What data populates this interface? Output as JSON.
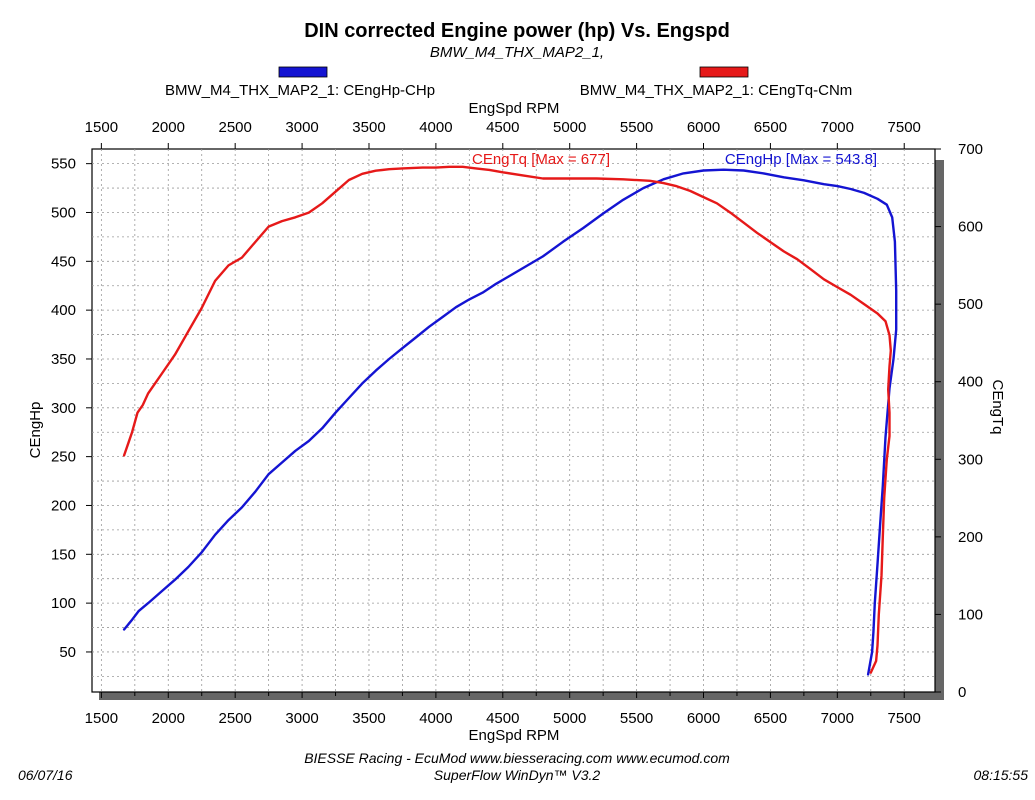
{
  "chart_data": {
    "type": "line",
    "title": "DIN corrected Engine power (hp) Vs. Engspd",
    "subtitle": "BMW_M4_THX_MAP2_1,",
    "xlabel": "EngSpd RPM",
    "ylabel": "CEngHp",
    "y2label": "CEngTq",
    "xlim": [
      1430,
      7730
    ],
    "ylim": [
      9,
      565
    ],
    "y2lim": [
      0,
      700
    ],
    "x_ticks": [
      1500,
      2000,
      2500,
      3000,
      3500,
      4000,
      4500,
      5000,
      5500,
      6000,
      6500,
      7000,
      7500
    ],
    "y_ticks": [
      50,
      100,
      150,
      200,
      250,
      300,
      350,
      400,
      450,
      500,
      550
    ],
    "y2_ticks": [
      0,
      100,
      200,
      300,
      400,
      500,
      600,
      700
    ],
    "grid": true,
    "legend_position": "top",
    "series": [
      {
        "name": "BMW_M4_THX_MAP2_1: CEngHp-CHp",
        "axis": "left",
        "color": "#1414d2",
        "annotation": "CEngHp [Max = 543.8]",
        "points": [
          [
            1670,
            73
          ],
          [
            1730,
            83
          ],
          [
            1780,
            92
          ],
          [
            1850,
            100
          ],
          [
            1950,
            112
          ],
          [
            2050,
            124
          ],
          [
            2150,
            137
          ],
          [
            2250,
            152
          ],
          [
            2350,
            170
          ],
          [
            2450,
            185
          ],
          [
            2550,
            198
          ],
          [
            2650,
            214
          ],
          [
            2750,
            232
          ],
          [
            2850,
            244
          ],
          [
            2950,
            256
          ],
          [
            3050,
            266
          ],
          [
            3150,
            279
          ],
          [
            3250,
            295
          ],
          [
            3350,
            310
          ],
          [
            3450,
            325
          ],
          [
            3550,
            338
          ],
          [
            3650,
            350
          ],
          [
            3750,
            361
          ],
          [
            3850,
            372
          ],
          [
            3950,
            383
          ],
          [
            4050,
            393
          ],
          [
            4150,
            403
          ],
          [
            4250,
            411
          ],
          [
            4350,
            418
          ],
          [
            4450,
            427
          ],
          [
            4550,
            435
          ],
          [
            4650,
            443
          ],
          [
            4800,
            455
          ],
          [
            4950,
            470
          ],
          [
            5100,
            484
          ],
          [
            5250,
            499
          ],
          [
            5400,
            513
          ],
          [
            5550,
            525
          ],
          [
            5700,
            534
          ],
          [
            5850,
            540
          ],
          [
            6000,
            543
          ],
          [
            6150,
            543.8
          ],
          [
            6300,
            543
          ],
          [
            6450,
            540
          ],
          [
            6600,
            536
          ],
          [
            6750,
            533
          ],
          [
            6900,
            529
          ],
          [
            7000,
            527
          ],
          [
            7100,
            524
          ],
          [
            7200,
            520
          ],
          [
            7300,
            514
          ],
          [
            7370,
            508
          ],
          [
            7410,
            495
          ],
          [
            7430,
            470
          ],
          [
            7440,
            420
          ],
          [
            7440,
            380
          ],
          [
            7420,
            350
          ],
          [
            7390,
            320
          ],
          [
            7360,
            270
          ],
          [
            7340,
            220
          ],
          [
            7320,
            180
          ],
          [
            7300,
            140
          ],
          [
            7280,
            100
          ],
          [
            7270,
            70
          ],
          [
            7260,
            50
          ],
          [
            7230,
            27
          ]
        ]
      },
      {
        "name": "BMW_M4_THX_MAP2_1: CEngTq-CNm",
        "axis": "right",
        "color": "#e61919",
        "annotation": "CEngTq [Max = 677]",
        "points": [
          [
            1670,
            305
          ],
          [
            1700,
            320
          ],
          [
            1730,
            335
          ],
          [
            1770,
            360
          ],
          [
            1810,
            370
          ],
          [
            1850,
            385
          ],
          [
            1950,
            410
          ],
          [
            2050,
            435
          ],
          [
            2150,
            465
          ],
          [
            2250,
            495
          ],
          [
            2350,
            530
          ],
          [
            2450,
            550
          ],
          [
            2550,
            560
          ],
          [
            2650,
            580
          ],
          [
            2750,
            600
          ],
          [
            2850,
            607
          ],
          [
            2950,
            612
          ],
          [
            3050,
            618
          ],
          [
            3150,
            630
          ],
          [
            3250,
            645
          ],
          [
            3350,
            660
          ],
          [
            3450,
            668
          ],
          [
            3550,
            672
          ],
          [
            3650,
            674
          ],
          [
            3750,
            675
          ],
          [
            3900,
            676
          ],
          [
            4000,
            676
          ],
          [
            4100,
            677
          ],
          [
            4200,
            677
          ],
          [
            4300,
            675
          ],
          [
            4400,
            673
          ],
          [
            4500,
            670
          ],
          [
            4650,
            666
          ],
          [
            4800,
            662
          ],
          [
            5000,
            662
          ],
          [
            5200,
            662
          ],
          [
            5400,
            661
          ],
          [
            5600,
            659
          ],
          [
            5700,
            656
          ],
          [
            5800,
            652
          ],
          [
            5900,
            646
          ],
          [
            6000,
            638
          ],
          [
            6100,
            630
          ],
          [
            6200,
            618
          ],
          [
            6300,
            605
          ],
          [
            6400,
            592
          ],
          [
            6500,
            580
          ],
          [
            6600,
            568
          ],
          [
            6700,
            558
          ],
          [
            6800,
            545
          ],
          [
            6900,
            532
          ],
          [
            7000,
            522
          ],
          [
            7100,
            512
          ],
          [
            7200,
            500
          ],
          [
            7300,
            488
          ],
          [
            7360,
            478
          ],
          [
            7390,
            460
          ],
          [
            7400,
            440
          ],
          [
            7390,
            420
          ],
          [
            7380,
            390
          ],
          [
            7390,
            360
          ],
          [
            7390,
            330
          ],
          [
            7370,
            300
          ],
          [
            7350,
            250
          ],
          [
            7340,
            200
          ],
          [
            7330,
            150
          ],
          [
            7310,
            100
          ],
          [
            7300,
            60
          ],
          [
            7290,
            40
          ],
          [
            7250,
            25
          ]
        ]
      }
    ]
  },
  "footer": {
    "line1": "BIESSE Racing - EcuMod www.biesseracing.com www.ecumod.com",
    "line2": "SuperFlow WinDyn™ V3.2",
    "date": "06/07/16",
    "time": "08:15:55"
  }
}
